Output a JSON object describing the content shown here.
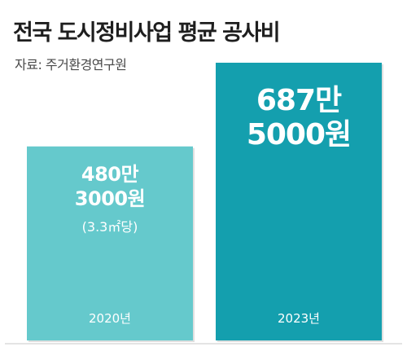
{
  "title": "전국 도시정비사업 평균 공사비",
  "source": "자료: 주거환경연구원",
  "colors": {
    "bar_2020": "#65c9cc",
    "bar_2023": "#149fae",
    "baseline": "#c9c9c9",
    "text_on_bar": "#ffffff"
  },
  "chart_data": {
    "type": "bar",
    "title": "전국 도시정비사업 평균 공사비",
    "categories": [
      "2020년",
      "2023년"
    ],
    "values": [
      4803000,
      6875000
    ],
    "data_labels": [
      [
        "480만",
        "3000원"
      ],
      [
        "687만",
        "5000원"
      ]
    ],
    "unit_note": "(3.3㎡당)",
    "xlabel": "",
    "ylabel": "",
    "ylim": [
      0,
      6875000
    ],
    "grid": false,
    "legend": "none"
  }
}
